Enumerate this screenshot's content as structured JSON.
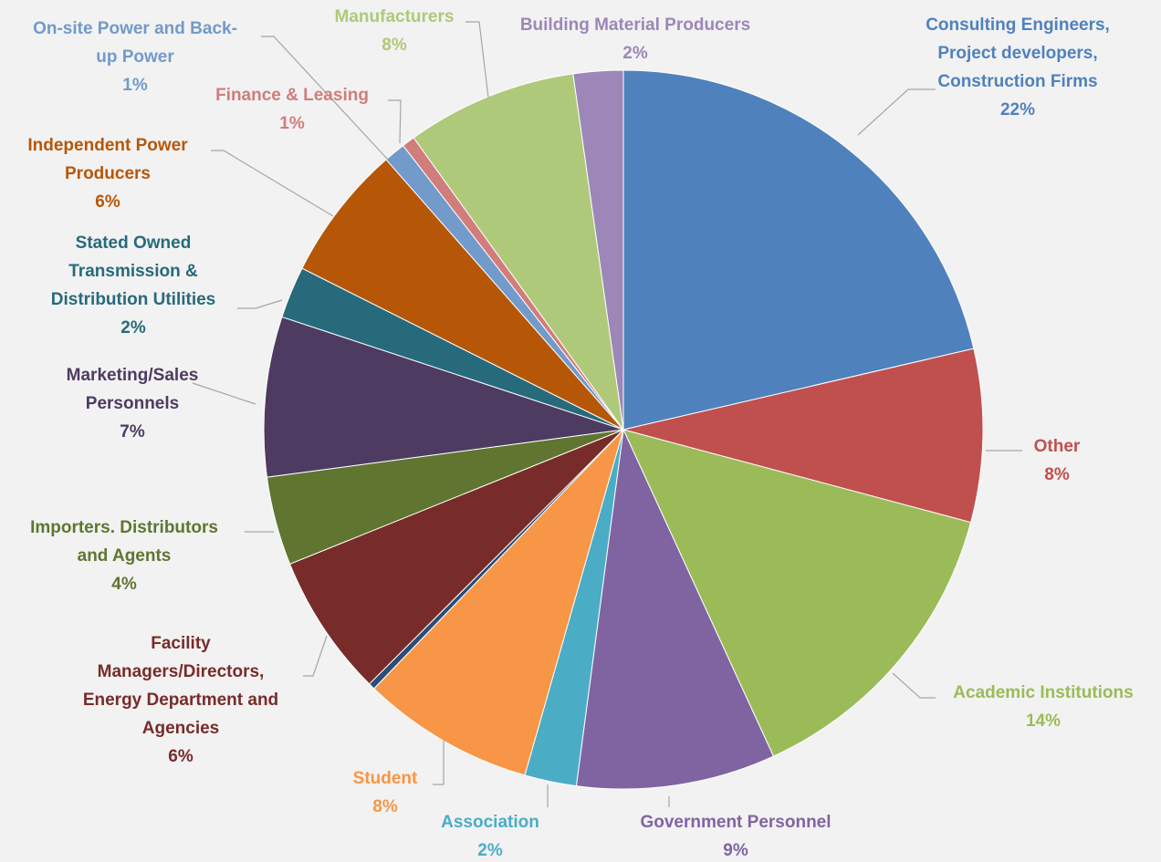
{
  "chart_data": {
    "type": "pie",
    "title": "",
    "legend": "none",
    "slices": [
      {
        "key": "consulting",
        "label_lines": [
          "Consulting Engineers,",
          "Project developers,",
          "Construction Firms"
        ],
        "pct_label": "22%",
        "value": 22.0,
        "color": "#4f81bd"
      },
      {
        "key": "other",
        "label_lines": [
          "Other"
        ],
        "pct_label": "8%",
        "value": 8.0,
        "color": "#c0504d"
      },
      {
        "key": "academic",
        "label_lines": [
          "Academic Institutions"
        ],
        "pct_label": "14%",
        "value": 14.4,
        "color": "#9bbb59"
      },
      {
        "key": "government",
        "label_lines": [
          "Government Personnel"
        ],
        "pct_label": "9%",
        "value": 9.2,
        "color": "#8064a2"
      },
      {
        "key": "association",
        "label_lines": [
          "Association"
        ],
        "pct_label": "2%",
        "value": 2.4,
        "color": "#4bacc6"
      },
      {
        "key": "student",
        "label_lines": [
          "Student"
        ],
        "pct_label": "8%",
        "value": 8.0,
        "color": "#f79646"
      },
      {
        "key": "thin",
        "label_lines": [],
        "pct_label": "",
        "value": 0.3,
        "color": "#2c4d75"
      },
      {
        "key": "facility",
        "label_lines": [
          "Facility",
          "Managers/Directors,",
          "Energy Department and",
          "Agencies"
        ],
        "pct_label": "6%",
        "value": 6.6,
        "color": "#772c2a"
      },
      {
        "key": "importers",
        "label_lines": [
          "Importers. Distributors",
          "and Agents"
        ],
        "pct_label": "4%",
        "value": 4.1,
        "color": "#5f7530"
      },
      {
        "key": "marketing",
        "label_lines": [
          "Marketing/Sales",
          "Personnels"
        ],
        "pct_label": "7%",
        "value": 7.4,
        "color": "#4d3b62"
      },
      {
        "key": "transmission",
        "label_lines": [
          "Stated Owned",
          "Transmission &",
          "Distribution Utilities"
        ],
        "pct_label": "2%",
        "value": 2.4,
        "color": "#276a7c"
      },
      {
        "key": "ipp",
        "label_lines": [
          "Independent Power",
          "Producers"
        ],
        "pct_label": "6%",
        "value": 6.3,
        "color": "#b65708"
      },
      {
        "key": "onsite",
        "label_lines": [
          "On-site Power and Back-",
          "up Power"
        ],
        "pct_label": "1%",
        "value": 1.0,
        "color": "#729aca"
      },
      {
        "key": "finance",
        "label_lines": [
          "Finance & Leasing"
        ],
        "pct_label": "1%",
        "value": 0.6,
        "color": "#d07d7b"
      },
      {
        "key": "manufacturers",
        "label_lines": [
          "Manufacturers"
        ],
        "pct_label": "8%",
        "value": 7.9,
        "color": "#afc97a"
      },
      {
        "key": "building",
        "label_lines": [
          "Building Material Producers"
        ],
        "pct_label": "2%",
        "value": 2.3,
        "color": "#9c87b8"
      }
    ]
  }
}
